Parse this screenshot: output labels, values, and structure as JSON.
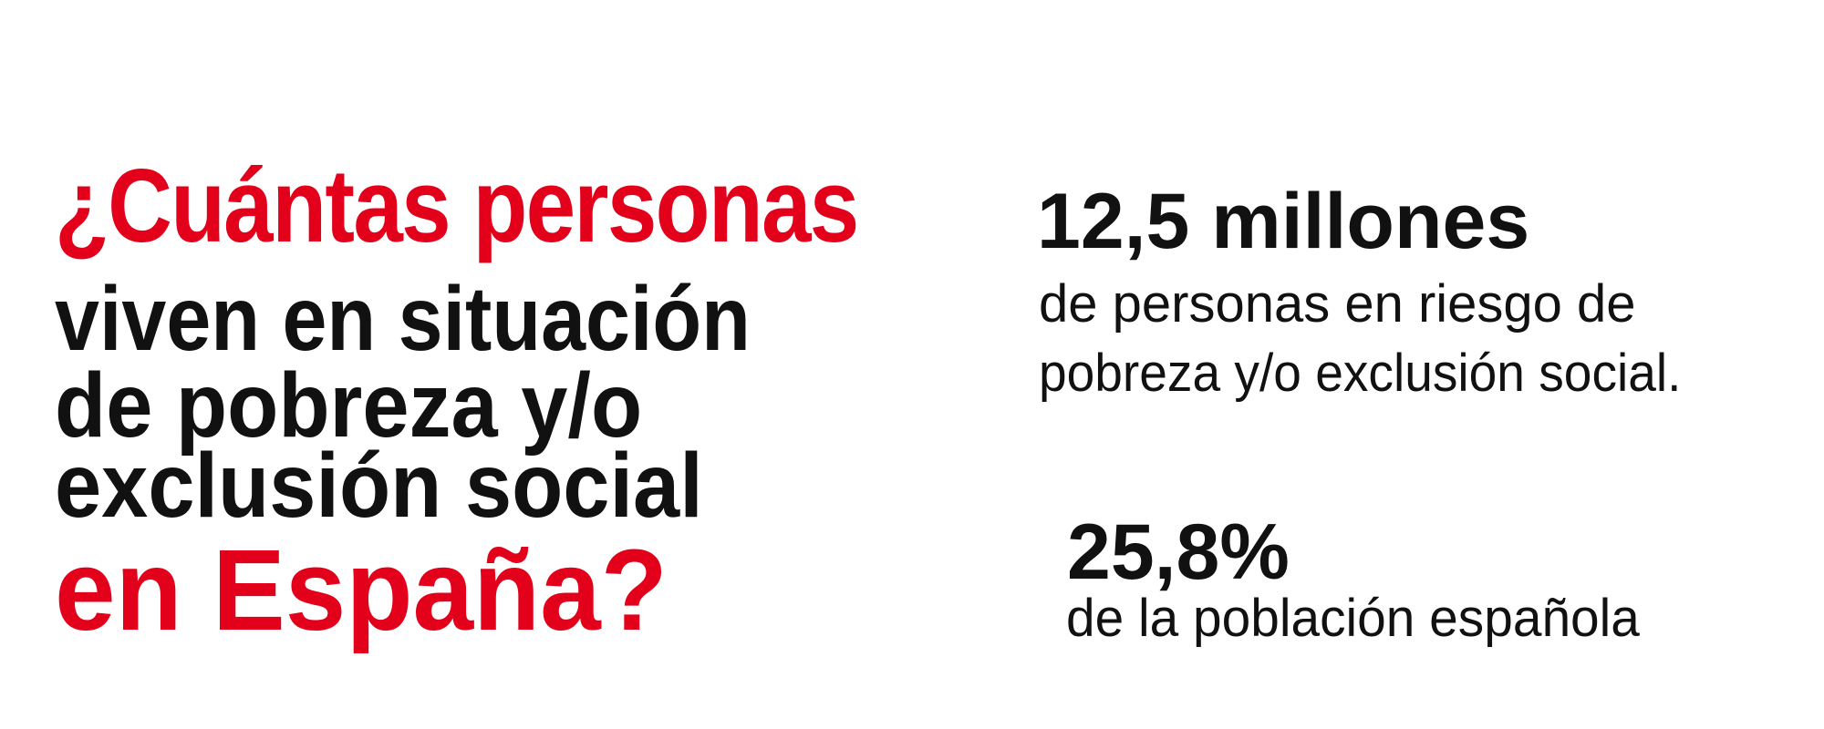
{
  "colors": {
    "accent": "#e2001a",
    "text": "#111111",
    "background": "#ffffff"
  },
  "headline": {
    "line1": "¿Cuántas personas",
    "line2": "viven en situación",
    "line3": "de pobreza y/o",
    "line4": "exclusión social",
    "line5": "en España?"
  },
  "stats": [
    {
      "value": "12,5 millones",
      "desc_line1": "de personas en riesgo de",
      "desc_line2": "pobreza y/o exclusión social."
    },
    {
      "value": "25,8%",
      "desc_line1": "de la población española"
    }
  ]
}
